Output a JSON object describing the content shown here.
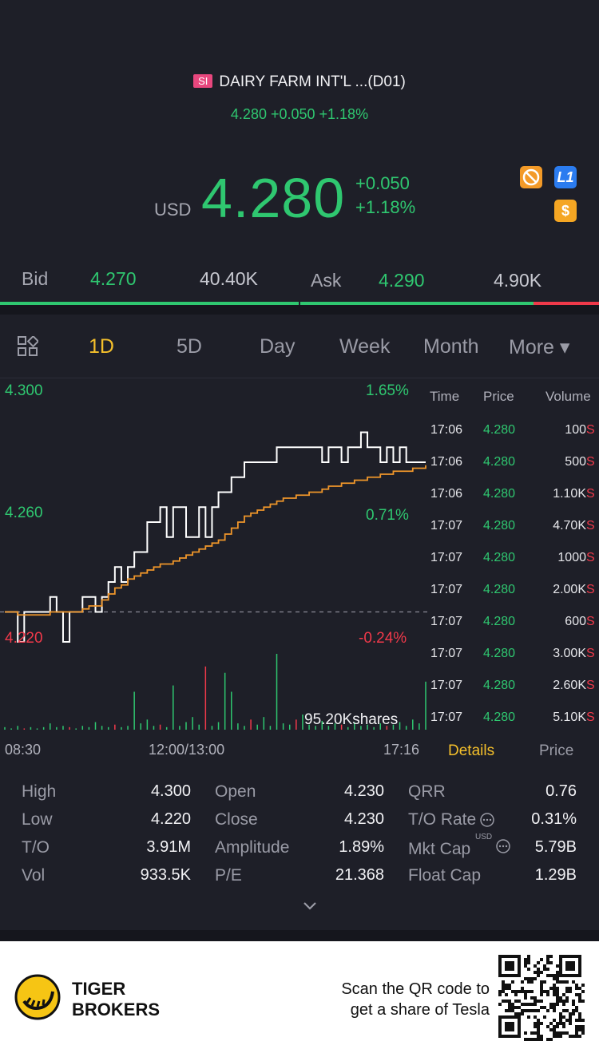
{
  "header": {
    "badge": "SI",
    "title": "DAIRY FARM INT'L ...(D01)",
    "sub_quote": "4.280 +0.050 +1.18%",
    "currency": "USD",
    "price": "4.280",
    "change_abs": "+0.050",
    "change_pct": "+1.18%",
    "icons": [
      "no-short-icon",
      "l1-icon",
      "dollar-icon"
    ],
    "icon_text_l1": "L1",
    "icon_text_dollar": "$"
  },
  "bid_ask": {
    "bid_label": "Bid",
    "bid_price": "4.270",
    "bid_size": "40.40K",
    "ask_label": "Ask",
    "ask_price": "4.290",
    "ask_size": "4.90K",
    "bid_ratio": 0.89
  },
  "tabs": [
    {
      "label": "1D",
      "active": true
    },
    {
      "label": "5D"
    },
    {
      "label": "Day"
    },
    {
      "label": "Week"
    },
    {
      "label": "Month"
    },
    {
      "label": "More ▾"
    }
  ],
  "chart_data": {
    "type": "line",
    "y_left_ticks": [
      "4.300",
      "4.260",
      "4.220"
    ],
    "y_right_ticks": [
      "1.65%",
      "0.71%",
      "-0.24%"
    ],
    "x_ticks": [
      "08:30",
      "12:00/13:00",
      "17:16"
    ],
    "volume_label": "95.20Kshares",
    "ylim": [
      4.22,
      4.3
    ],
    "prev_close": 4.23,
    "series": [
      {
        "values": [
          4.23,
          4.23,
          4.22,
          4.23,
          4.23,
          4.23,
          4.23,
          4.235,
          4.23,
          4.22,
          4.23,
          4.23,
          4.235,
          4.235,
          4.23,
          4.235,
          4.24,
          4.245,
          4.24,
          4.245,
          4.25,
          4.25,
          4.26,
          4.26,
          4.265,
          4.255,
          4.265,
          4.265,
          4.255,
          4.255,
          4.265,
          4.255,
          4.265,
          4.27,
          4.27,
          4.275,
          4.275,
          4.28,
          4.28,
          4.28,
          4.28,
          4.28,
          4.285,
          4.285,
          4.285,
          4.285,
          4.285,
          4.285,
          4.285,
          4.28,
          4.285,
          4.285,
          4.28,
          4.285,
          4.285,
          4.29,
          4.285,
          4.285,
          4.28,
          4.285,
          4.28,
          4.285,
          4.28,
          4.28,
          4.28,
          4.28
        ]
      },
      {
        "values": [
          4.23,
          4.23,
          4.229,
          4.229,
          4.229,
          4.229,
          4.229,
          4.23,
          4.23,
          4.23,
          4.23,
          4.23,
          4.231,
          4.232,
          4.232,
          4.234,
          4.236,
          4.238,
          4.239,
          4.241,
          4.242,
          4.243,
          4.244,
          4.245,
          4.246,
          4.246,
          4.247,
          4.248,
          4.249,
          4.25,
          4.251,
          4.252,
          4.253,
          4.254,
          4.256,
          4.258,
          4.26,
          4.262,
          4.263,
          4.264,
          4.265,
          4.266,
          4.267,
          4.268,
          4.268,
          4.269,
          4.269,
          4.27,
          4.27,
          4.271,
          4.272,
          4.272,
          4.273,
          4.273,
          4.274,
          4.274,
          4.275,
          4.275,
          4.276,
          4.276,
          4.277,
          4.277,
          4.277,
          4.278,
          4.278,
          4.279
        ]
      }
    ],
    "volume": [
      2,
      1,
      3,
      1,
      2,
      1,
      2,
      5,
      2,
      3,
      2,
      1,
      3,
      2,
      6,
      3,
      2,
      4,
      2,
      3,
      30,
      5,
      8,
      3,
      4,
      2,
      35,
      3,
      6,
      10,
      4,
      50,
      3,
      6,
      45,
      30,
      5,
      3,
      8,
      4,
      10,
      3,
      60,
      5,
      4,
      8,
      12,
      4,
      3,
      7,
      3,
      5,
      4,
      2,
      6,
      3,
      4,
      2,
      5,
      3,
      4,
      6,
      3,
      8,
      5,
      38
    ]
  },
  "trades": {
    "headers": [
      "Time",
      "Price",
      "Volume"
    ],
    "rows": [
      {
        "time": "17:06",
        "price": "4.280",
        "volume": "100",
        "side": "S"
      },
      {
        "time": "17:06",
        "price": "4.280",
        "volume": "500",
        "side": "S"
      },
      {
        "time": "17:06",
        "price": "4.280",
        "volume": "1.10K",
        "side": "S"
      },
      {
        "time": "17:07",
        "price": "4.280",
        "volume": "4.70K",
        "side": "S"
      },
      {
        "time": "17:07",
        "price": "4.280",
        "volume": "1000",
        "side": "S"
      },
      {
        "time": "17:07",
        "price": "4.280",
        "volume": "2.00K",
        "side": "S"
      },
      {
        "time": "17:07",
        "price": "4.280",
        "volume": "600",
        "side": "S"
      },
      {
        "time": "17:07",
        "price": "4.280",
        "volume": "3.00K",
        "side": "S"
      },
      {
        "time": "17:07",
        "price": "4.280",
        "volume": "2.60K",
        "side": "S"
      },
      {
        "time": "17:07",
        "price": "4.280",
        "volume": "5.10K",
        "side": "S"
      }
    ],
    "details_tab": "Details",
    "price_tab": "Price"
  },
  "stats": {
    "col1": [
      {
        "label": "High",
        "value": "4.300"
      },
      {
        "label": "Low",
        "value": "4.220"
      },
      {
        "label": "T/O",
        "value": "3.91M"
      },
      {
        "label": "Vol",
        "value": "933.5K"
      }
    ],
    "col2": [
      {
        "label": "Open",
        "value": "4.230"
      },
      {
        "label": "Close",
        "value": "4.230"
      },
      {
        "label": "Amplitude",
        "value": "1.89%"
      },
      {
        "label": "P/E",
        "value": "21.368"
      }
    ],
    "col3": [
      {
        "label": "QRR",
        "value": "0.76"
      },
      {
        "label": "T/O Rate",
        "value": "0.31%"
      },
      {
        "label": "Mkt Cap",
        "value": "5.79B"
      },
      {
        "label": "Float Cap",
        "value": "1.29B"
      }
    ],
    "mktcap_currency": "USD"
  },
  "footer": {
    "brand_line1": "TIGER",
    "brand_line2": "BROKERS",
    "promo_line1": "Scan the QR code to",
    "promo_line2": "get a share of Tesla"
  },
  "colors": {
    "background": "#1e1f28",
    "up": "#2fc770",
    "down": "#f0394a",
    "accent": "#f5c02b",
    "avg_line": "#f0962a"
  }
}
